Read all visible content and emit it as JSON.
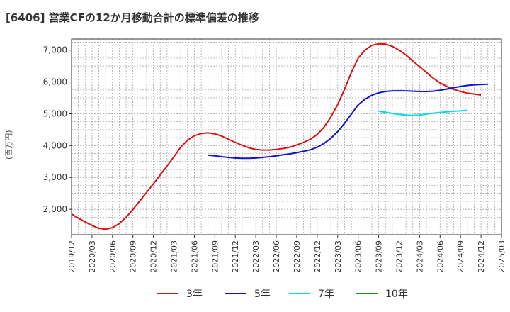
{
  "title": "[6406]  営業CFの12か月移動合計の標準偏差の推移",
  "ylabel": "(百万円)",
  "chart_data": {
    "type": "line",
    "title": "[6406]  営業CFの12か月移動合計の標準偏差の推移",
    "ylabel": "(百万円)",
    "xlabel": "",
    "ylim": [
      1200,
      7350
    ],
    "yticks": [
      2000,
      3000,
      4000,
      5000,
      6000,
      7000
    ],
    "ytick_labels": [
      "2,000",
      "3,000",
      "4,000",
      "5,000",
      "6,000",
      "7,000"
    ],
    "xtick_labels": [
      "2019/12",
      "2020/03",
      "2020/06",
      "2020/09",
      "2020/12",
      "2021/03",
      "2021/06",
      "2021/09",
      "2021/12",
      "2022/03",
      "2022/06",
      "2022/09",
      "2022/12",
      "2023/03",
      "2023/06",
      "2023/09",
      "2023/12",
      "2024/03",
      "2024/06",
      "2024/09",
      "2024/12",
      "2025/03"
    ],
    "x_start": "2019/12",
    "grid": true,
    "legend_position": "bottom",
    "series": [
      {
        "name": "3年",
        "color": "#dd1111",
        "start": "2019/12",
        "values": [
          1850,
          1720,
          1600,
          1490,
          1400,
          1370,
          1420,
          1550,
          1750,
          1990,
          2260,
          2530,
          2800,
          3080,
          3360,
          3650,
          3950,
          4170,
          4310,
          4380,
          4400,
          4370,
          4300,
          4200,
          4100,
          4010,
          3930,
          3880,
          3860,
          3860,
          3880,
          3910,
          3950,
          4020,
          4100,
          4200,
          4350,
          4580,
          4900,
          5290,
          5770,
          6300,
          6750,
          7000,
          7150,
          7200,
          7190,
          7120,
          7000,
          6850,
          6660,
          6480,
          6300,
          6120,
          5970,
          5860,
          5770,
          5700,
          5650,
          5620,
          5590
        ]
      },
      {
        "name": "5年",
        "color": "#1111cc",
        "start": "2021/08",
        "values": [
          3700,
          3680,
          3650,
          3630,
          3610,
          3600,
          3600,
          3610,
          3630,
          3650,
          3680,
          3710,
          3740,
          3780,
          3820,
          3870,
          3950,
          4070,
          4230,
          4440,
          4700,
          4990,
          5280,
          5460,
          5580,
          5660,
          5700,
          5720,
          5720,
          5720,
          5710,
          5700,
          5700,
          5710,
          5740,
          5780,
          5820,
          5860,
          5890,
          5910,
          5920,
          5930
        ]
      },
      {
        "name": "7年",
        "color": "#00dddd",
        "start": "2023/09",
        "values": [
          5080,
          5050,
          5010,
          4980,
          4960,
          4950,
          4960,
          4990,
          5020,
          5040,
          5060,
          5080,
          5090,
          5110
        ]
      },
      {
        "name": "10年",
        "color": "#228822",
        "start": "2019/12",
        "values": []
      }
    ]
  }
}
